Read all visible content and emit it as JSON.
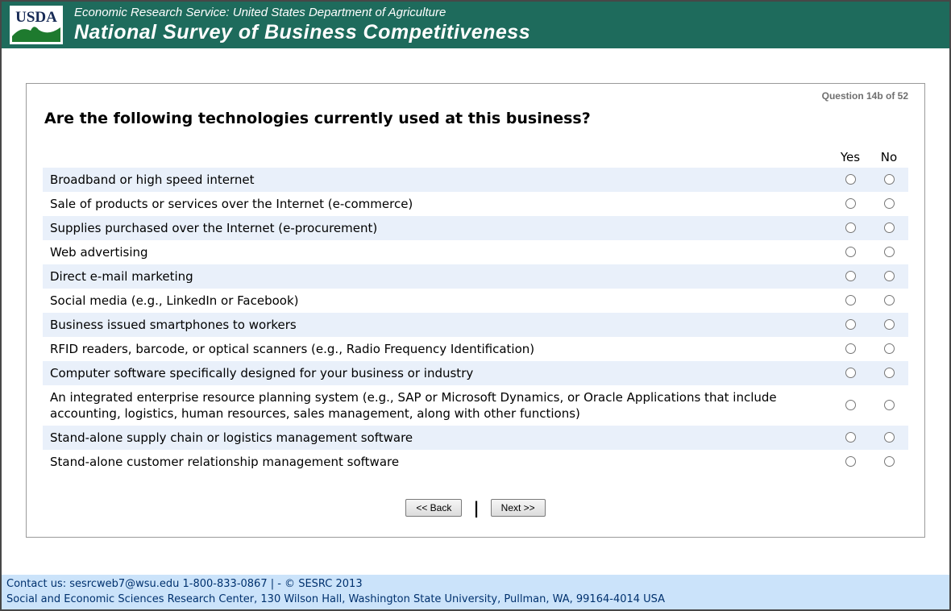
{
  "colors": {
    "band_bg": "#1E6B5C",
    "alt_row_bg": "#E9F0FA",
    "footer_bg": "#CBE3FA",
    "footer_text": "#00316E",
    "logo_navy": "#182B56",
    "logo_green": "#1E7A2E"
  },
  "header": {
    "logo_text": "USDA",
    "agency_line": "Economic Research Service: United States Department of Agriculture",
    "title": "National Survey of Business Competitiveness"
  },
  "survey": {
    "question_number": "Question 14b of 52",
    "question": "Are the following technologies currently used at this business?",
    "columns": [
      "Yes",
      "No"
    ],
    "rows": [
      {
        "label": "Broadband or high speed internet"
      },
      {
        "label": "Sale of products or services over the Internet (e-commerce)"
      },
      {
        "label": "Supplies purchased over the Internet (e-procurement)"
      },
      {
        "label": "Web advertising"
      },
      {
        "label": "Direct e-mail marketing"
      },
      {
        "label": "Social media (e.g., LinkedIn or Facebook)"
      },
      {
        "label": "Business issued smartphones to workers"
      },
      {
        "label": "RFID readers, barcode, or optical scanners (e.g., Radio Frequency Identification)"
      },
      {
        "label": "Computer software specifically designed for your business or industry"
      },
      {
        "label": "An integrated enterprise resource planning system (e.g., SAP or Microsoft Dynamics, or Oracle Applications that include accounting, logistics, human resources, sales management, along with other functions)"
      },
      {
        "label": "Stand-alone supply chain or logistics management software"
      },
      {
        "label": "Stand-alone customer relationship management software"
      }
    ]
  },
  "navigation": {
    "back_label": "<< Back",
    "separator": "|",
    "next_label": "Next >>"
  },
  "footer": {
    "line1": "Contact us: sesrcweb7@wsu.edu 1-800-833-0867 | - © SESRC 2013",
    "line2": "Social and Economic Sciences Research Center, 130 Wilson Hall, Washington State University, Pullman, WA, 99164-4014 USA"
  }
}
